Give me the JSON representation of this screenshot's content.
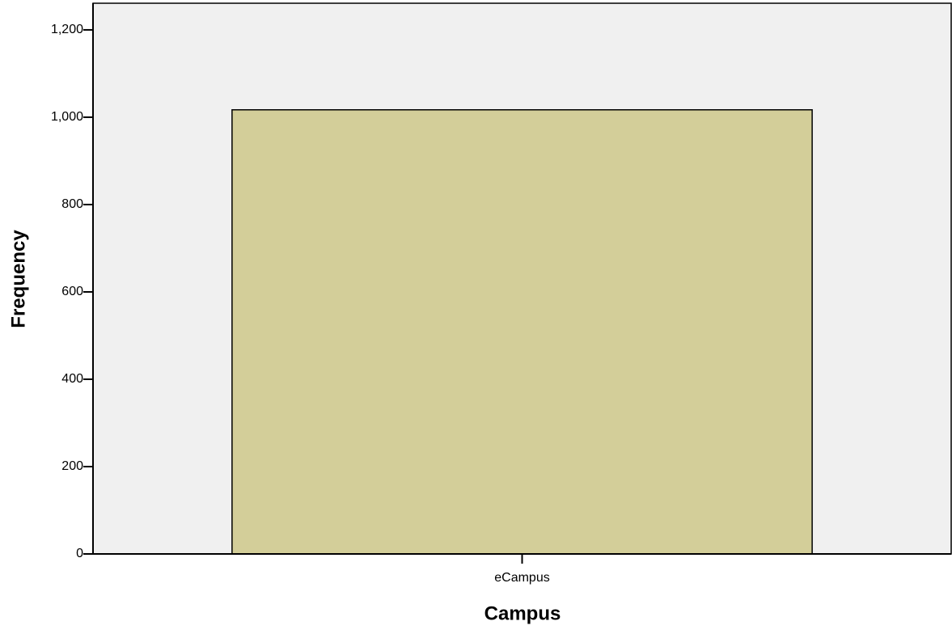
{
  "chart_data": {
    "type": "bar",
    "categories": [
      "eCampus"
    ],
    "values": [
      1017
    ],
    "color": "#d3ce99",
    "xlabel": "Campus",
    "ylabel": "Frequency",
    "ylim": [
      0,
      1261
    ],
    "yticks": [
      0,
      200,
      400,
      600,
      800,
      {
        "value": 1000,
        "label": "1,000"
      },
      {
        "value": 1200,
        "label": "1,200"
      }
    ],
    "background": "#f0f0f0"
  }
}
